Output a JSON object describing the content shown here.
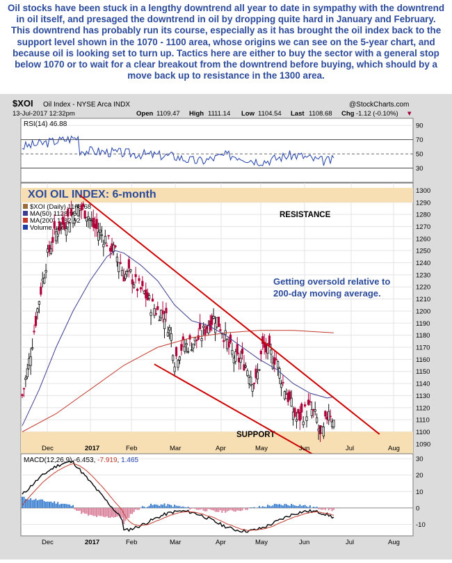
{
  "caption": "Oil stocks have been stuck in a lengthy downtrend all year to date in sympathy with the downtrend in oil itself, and presaged the downtrend in oil by dropping quite hard in January and February. This downtrend has probably run its course, especially as it has brought the oil index back to the support level shown in the 1070 - 1100 area, whose origins we can see on the 5-year chart, and because oil is looking set to turn up. Tactics here are either to buy the sector with a general stop below 1070 or to wait for a clear breakout from the downtrend before buying, which should by a move back up to resistance in the 1300 area.",
  "header": {
    "symbol": "$XOI",
    "name": "Oil Index - NYSE Arca INDX",
    "date": "13-Jul-2017 12:32pm",
    "open_label": "Open",
    "open": "1109.47",
    "high_label": "High",
    "high": "1111.14",
    "low_label": "Low",
    "low": "1104.54",
    "last_label": "Last",
    "last": "1108.68",
    "chg_label": "Chg",
    "chg": "-1.12 (-0.10%)",
    "chg_marker": "▼",
    "credit": "@StockCharts.com"
  },
  "rsi": {
    "label": "RSI(14)",
    "value": "46.88"
  },
  "main": {
    "title": "XOI OIL INDEX: 6-month",
    "legend": [
      {
        "label": "$XOI (Daily) 1108.68",
        "color": "#9c6b3a"
      },
      {
        "label": "MA(50) 1128.95",
        "color": "#3b3b8f"
      },
      {
        "label": "MA(200) 1182.02",
        "color": "#c0392b"
      },
      {
        "label": "Volume undef",
        "color": "#1f3fa8"
      }
    ],
    "resistance_label": "RESISTANCE",
    "support_label": "SUPPORT",
    "note_line1": "Getting oversold relative to",
    "note_line2": "200-day  moving  average."
  },
  "macd": {
    "label": "MACD(12,26,9)",
    "value1": "-6.453",
    "value2": "-7.919",
    "value3": "1.465"
  },
  "colors": {
    "accent": "#2b4a9a",
    "trend": "#cc0000",
    "zone": "#f8deb3",
    "ma50": "#3b3b8f",
    "ma200": "#c0392b"
  },
  "chart_data": {
    "type": "candlestick",
    "x_ticks": [
      "Dec",
      "2017",
      "Feb",
      "Mar",
      "Apr",
      "May",
      "Jun",
      "Jul",
      "Aug"
    ],
    "price_axis": {
      "ticks": [
        1300,
        1290,
        1280,
        1270,
        1260,
        1250,
        1240,
        1230,
        1220,
        1210,
        1200,
        1190,
        1180,
        1170,
        1160,
        1150,
        1140,
        1130,
        1120,
        1110,
        1100,
        1090
      ],
      "ylim": [
        1083,
        1306
      ]
    },
    "rsi_axis": {
      "ticks": [
        90,
        70,
        50,
        30
      ],
      "ylim": [
        10,
        100
      ],
      "levels": [
        70,
        30
      ]
    },
    "macd_axis": {
      "ticks": [
        30,
        20,
        10,
        0,
        -10
      ],
      "ylim": [
        -17,
        33
      ]
    },
    "resistance_zone": [
      1290,
      1302
    ],
    "support_zone": [
      1080,
      1100
    ],
    "close_points": [
      [
        0,
        1130
      ],
      [
        3,
        1150
      ],
      [
        6,
        1175
      ],
      [
        10,
        1210
      ],
      [
        14,
        1240
      ],
      [
        18,
        1260
      ],
      [
        22,
        1270
      ],
      [
        26,
        1275
      ],
      [
        30,
        1280
      ],
      [
        34,
        1285
      ],
      [
        38,
        1282
      ],
      [
        42,
        1270
      ],
      [
        46,
        1265
      ],
      [
        50,
        1258
      ],
      [
        54,
        1250
      ],
      [
        58,
        1240
      ],
      [
        60,
        1230
      ],
      [
        64,
        1230
      ],
      [
        68,
        1220
      ],
      [
        72,
        1215
      ],
      [
        76,
        1205
      ],
      [
        80,
        1200
      ],
      [
        84,
        1198
      ],
      [
        88,
        1180
      ],
      [
        90,
        1160
      ],
      [
        94,
        1170
      ],
      [
        98,
        1172
      ],
      [
        102,
        1175
      ],
      [
        106,
        1180
      ],
      [
        110,
        1190
      ],
      [
        114,
        1195
      ],
      [
        118,
        1185
      ],
      [
        122,
        1170
      ],
      [
        126,
        1160
      ],
      [
        130,
        1160
      ],
      [
        134,
        1150
      ],
      [
        138,
        1140
      ],
      [
        142,
        1170
      ],
      [
        146,
        1165
      ],
      [
        150,
        1160
      ],
      [
        154,
        1140
      ],
      [
        158,
        1125
      ],
      [
        162,
        1110
      ],
      [
        166,
        1115
      ],
      [
        170,
        1120
      ],
      [
        174,
        1110
      ],
      [
        176,
        1095
      ],
      [
        178,
        1100
      ],
      [
        181,
        1120
      ],
      [
        184,
        1108
      ]
    ],
    "ma50_points": [
      [
        0,
        1105
      ],
      [
        10,
        1135
      ],
      [
        20,
        1170
      ],
      [
        30,
        1200
      ],
      [
        40,
        1225
      ],
      [
        50,
        1245
      ],
      [
        55,
        1250
      ],
      [
        60,
        1248
      ],
      [
        70,
        1238
      ],
      [
        80,
        1225
      ],
      [
        90,
        1205
      ],
      [
        100,
        1192
      ],
      [
        110,
        1188
      ],
      [
        120,
        1180
      ],
      [
        130,
        1170
      ],
      [
        140,
        1160
      ],
      [
        150,
        1152
      ],
      [
        160,
        1140
      ],
      [
        170,
        1132
      ],
      [
        180,
        1128
      ],
      [
        184,
        1129
      ]
    ],
    "ma200_points": [
      [
        0,
        1100
      ],
      [
        20,
        1115
      ],
      [
        40,
        1135
      ],
      [
        60,
        1155
      ],
      [
        80,
        1170
      ],
      [
        100,
        1178
      ],
      [
        120,
        1182
      ],
      [
        140,
        1184
      ],
      [
        160,
        1184
      ],
      [
        184,
        1182
      ]
    ],
    "trendlines": [
      {
        "name": "upper",
        "from": [
          34,
          1296
        ],
        "to": [
          211,
          1098
        ]
      },
      {
        "name": "lower",
        "from": [
          78,
          1156
        ],
        "to": [
          211,
          1050
        ]
      }
    ]
  }
}
